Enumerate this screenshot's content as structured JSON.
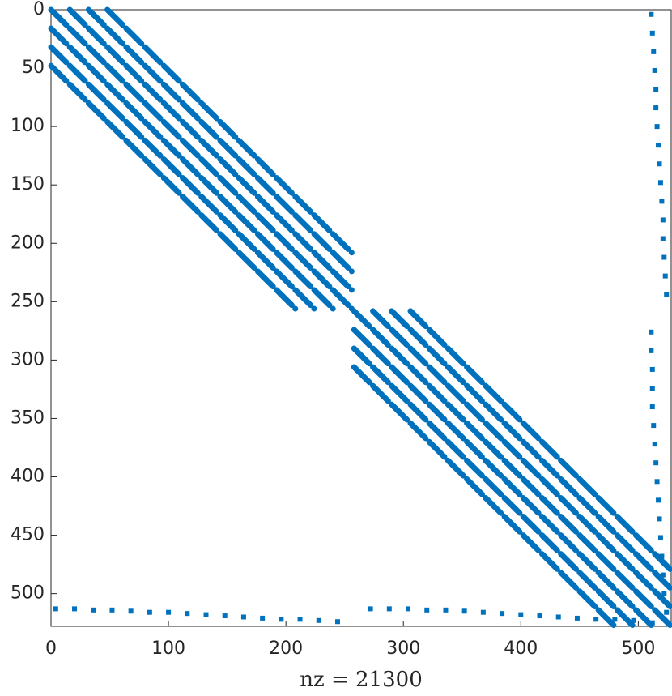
{
  "chart_data": {
    "type": "spy",
    "xlabel": "nz = 21300",
    "color": "#0072bd",
    "xlim": [
      0,
      528
    ],
    "ylim": [
      0,
      528
    ],
    "xticks": [
      0,
      100,
      200,
      300,
      400,
      500
    ],
    "yticks": [
      0,
      50,
      100,
      150,
      200,
      250,
      300,
      350,
      400,
      450,
      500
    ],
    "blocks": [
      {
        "start": 0,
        "size": 257,
        "offsets": [
          -48,
          -32,
          -16,
          0,
          16,
          32,
          48
        ]
      },
      {
        "start": 258,
        "size": 270,
        "offsets": [
          -48,
          -32,
          -16,
          0,
          16,
          32,
          48
        ]
      }
    ],
    "series": [
      {
        "x": [
          511,
          512,
          513,
          514,
          515,
          515,
          516,
          517,
          518,
          519,
          520,
          521,
          521,
          522,
          523,
          524
        ],
        "y": [
          4,
          20,
          36,
          52,
          68,
          84,
          100,
          116,
          132,
          148,
          164,
          180,
          196,
          212,
          228,
          244
        ]
      },
      {
        "x": [
          511,
          511,
          512,
          512,
          512,
          513,
          514,
          515,
          516,
          517,
          518,
          519,
          520,
          521,
          522,
          524
        ],
        "y": [
          276,
          292,
          308,
          324,
          340,
          356,
          372,
          388,
          404,
          420,
          436,
          452,
          468,
          484,
          500,
          516
        ]
      },
      {
        "x": [
          4,
          20,
          36,
          52,
          68,
          84,
          100,
          116,
          132,
          148,
          164,
          180,
          196,
          212,
          228,
          244
        ],
        "y": [
          513,
          513,
          514,
          514,
          515,
          516,
          516,
          517,
          518,
          519,
          520,
          521,
          522,
          522,
          523,
          524
        ]
      },
      {
        "x": [
          272,
          288,
          304,
          320,
          336,
          352,
          368,
          384,
          400,
          416,
          432,
          448,
          464,
          480,
          496,
          512
        ],
        "y": [
          513,
          513,
          513,
          514,
          514,
          515,
          516,
          517,
          518,
          519,
          520,
          521,
          522,
          522,
          523,
          525
        ]
      }
    ]
  }
}
